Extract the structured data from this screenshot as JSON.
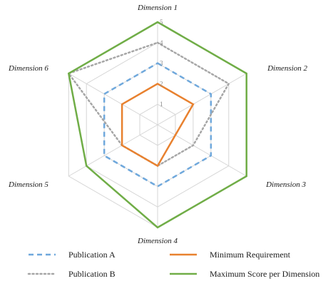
{
  "chart_data": {
    "type": "radar",
    "axes": [
      "Dimension 1",
      "Dimension 2",
      "Dimension 3",
      "Dimension 4",
      "Dimension 5",
      "Dimension 6"
    ],
    "rlim": [
      0,
      5
    ],
    "ticks": [
      "1",
      "2",
      "3",
      "4",
      "5"
    ],
    "grid": true,
    "legend_position": "bottom",
    "series": [
      {
        "name": "Publication A",
        "values": [
          3,
          3,
          3,
          3,
          3,
          3
        ],
        "color": "#6fa8dc",
        "style": "dashed"
      },
      {
        "name": "Publication B",
        "values": [
          4,
          4,
          2,
          2,
          2,
          5
        ],
        "color": "#a6a6a6",
        "style": "dotted"
      },
      {
        "name": "Minimum Requirement",
        "values": [
          2,
          2,
          1,
          2,
          2,
          2
        ],
        "color": "#e8812f",
        "style": "solid"
      },
      {
        "name": "Maximum Score per Dimension",
        "values": [
          5,
          5,
          5,
          5,
          4,
          5
        ],
        "color": "#70ad47",
        "style": "solid"
      }
    ]
  }
}
